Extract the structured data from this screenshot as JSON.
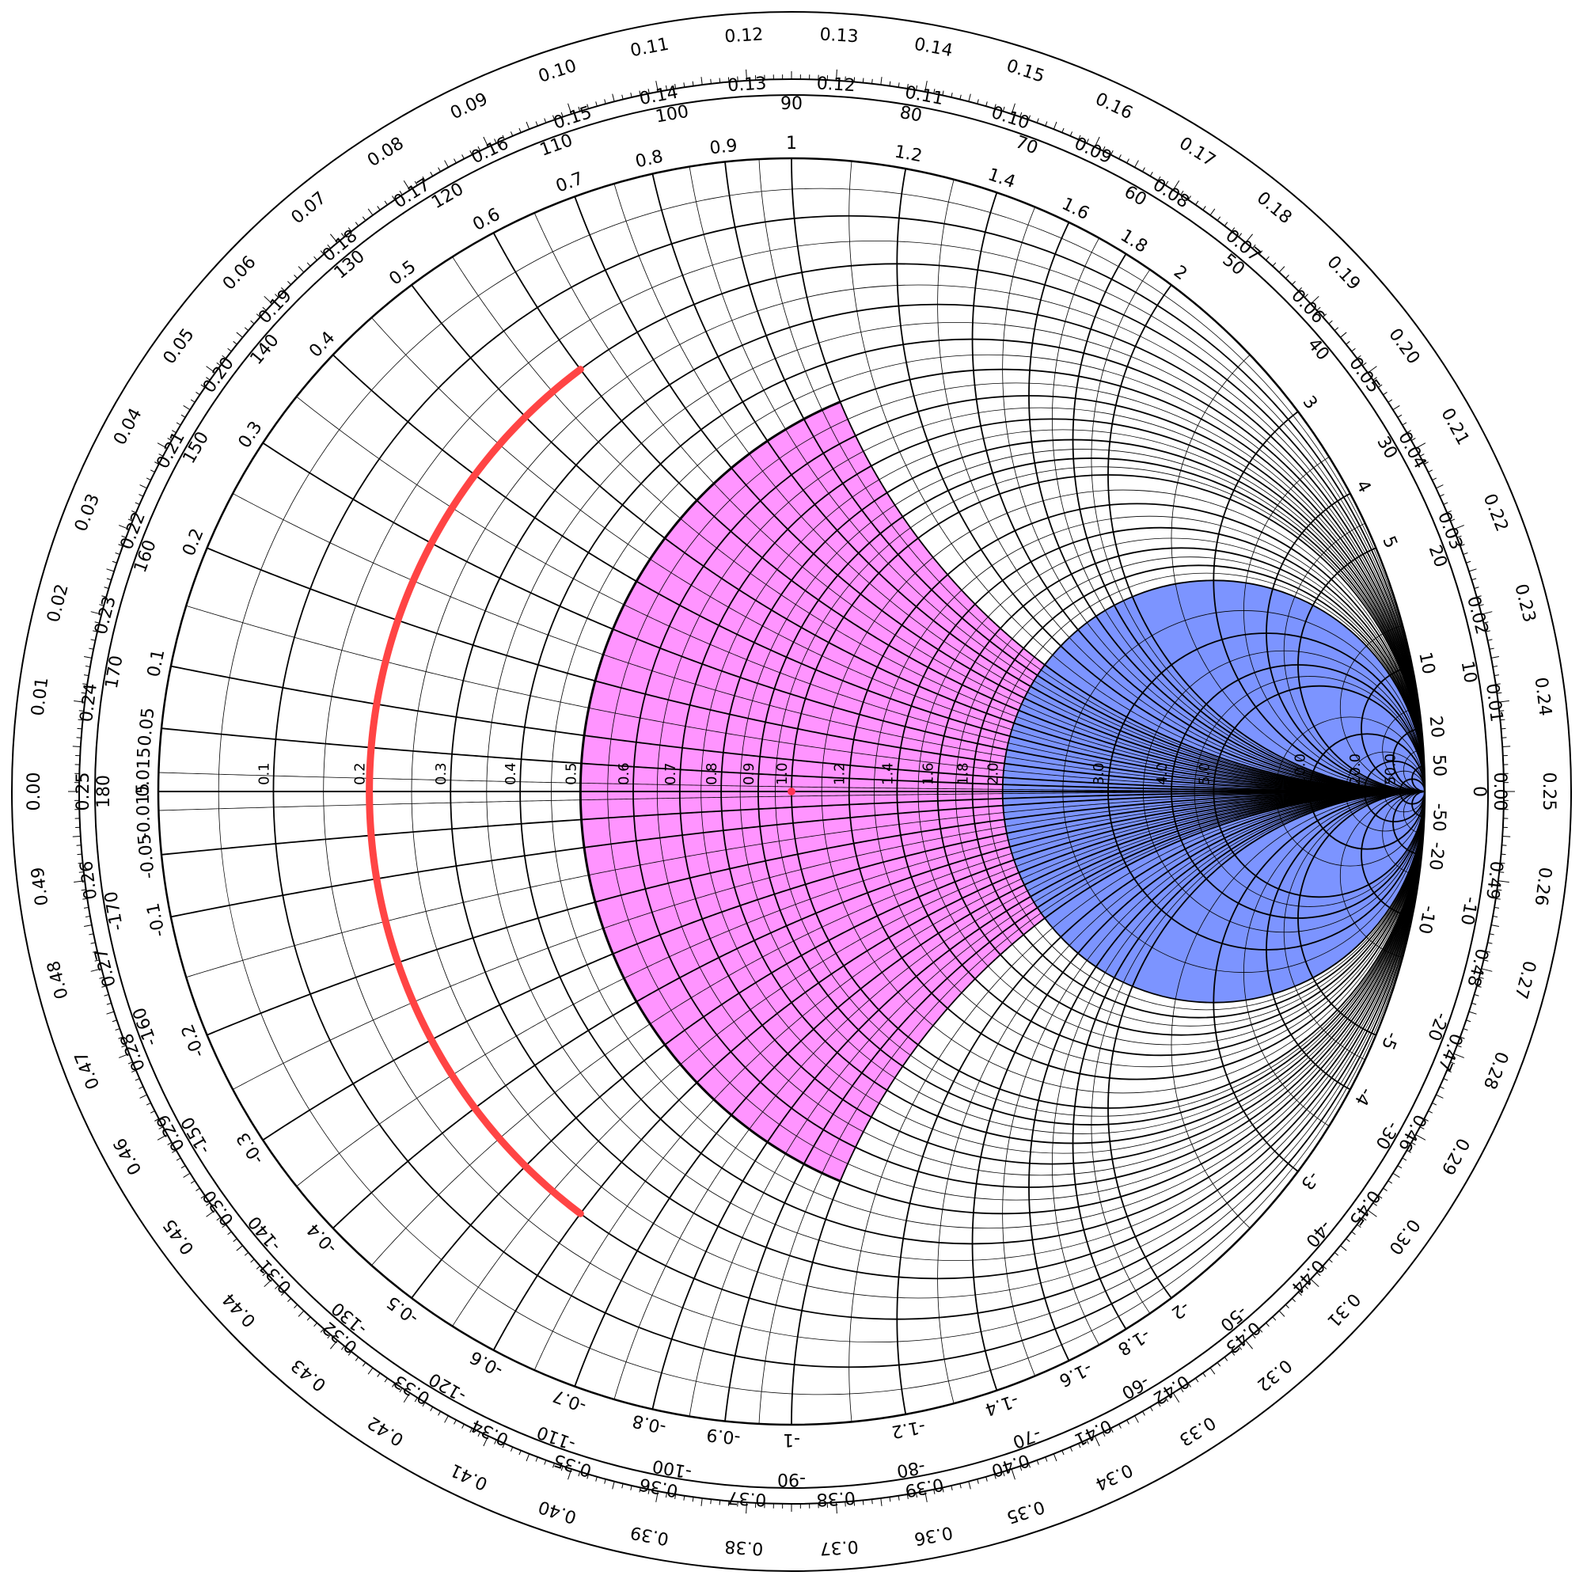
{
  "chart_data": {
    "type": "smith-chart",
    "colors": {
      "line": "#000000",
      "pink_region": "#ff66ff",
      "blue_region": "#4466ff",
      "arc": "#ff4444",
      "center_dot": "#ff3355"
    },
    "rings": {
      "toward_generator_labels": [
        "0.00",
        "0.01",
        "0.02",
        "0.03",
        "0.04",
        "0.05",
        "0.06",
        "0.07",
        "0.08",
        "0.09",
        "0.10",
        "0.11",
        "0.12",
        "0.13",
        "0.14",
        "0.15",
        "0.16",
        "0.17",
        "0.18",
        "0.19",
        "0.20",
        "0.21",
        "0.22",
        "0.23",
        "0.24",
        "0.25",
        "0.26",
        "0.27",
        "0.28",
        "0.29",
        "0.30",
        "0.31",
        "0.32",
        "0.33",
        "0.34",
        "0.35",
        "0.36",
        "0.37",
        "0.38",
        "0.39",
        "0.40",
        "0.41",
        "0.42",
        "0.43",
        "0.44",
        "0.45",
        "0.46",
        "0.47",
        "0.48",
        "0.49"
      ],
      "toward_load_labels": [
        "0.00",
        "0.01",
        "0.02",
        "0.03",
        "0.04",
        "0.05",
        "0.06",
        "0.07",
        "0.08",
        "0.09",
        "0.10",
        "0.11",
        "0.12",
        "0.13",
        "0.14",
        "0.15",
        "0.16",
        "0.17",
        "0.18",
        "0.19",
        "0.20",
        "0.21",
        "0.22",
        "0.23",
        "0.24",
        "0.25",
        "0.26",
        "0.27",
        "0.28",
        "0.29",
        "0.30",
        "0.31",
        "0.32",
        "0.33",
        "0.34",
        "0.35",
        "0.36",
        "0.37",
        "0.38",
        "0.39",
        "0.40",
        "0.41",
        "0.42",
        "0.43",
        "0.44",
        "0.45",
        "0.46",
        "0.47",
        "0.48",
        "0.49"
      ],
      "angle_values": [
        0,
        10,
        20,
        30,
        40,
        50,
        60,
        70,
        80,
        90,
        100,
        110,
        120,
        130,
        140,
        150,
        160,
        170,
        180,
        -170,
        -160,
        -150,
        -140,
        -130,
        -120,
        -110,
        -100,
        -90,
        -80,
        -70,
        -60,
        -50,
        -40,
        -30,
        -20,
        -10
      ]
    },
    "reactance_labels": [
      {
        "x": 0.015,
        "text": "0.015"
      },
      {
        "x": 0.05,
        "text": "0.05"
      },
      {
        "x": 0.1,
        "text": "0.1"
      },
      {
        "x": 0.2,
        "text": "0.2"
      },
      {
        "x": 0.3,
        "text": "0.3"
      },
      {
        "x": 0.4,
        "text": "0.4"
      },
      {
        "x": 0.5,
        "text": "0.5"
      },
      {
        "x": 0.6,
        "text": "0.6"
      },
      {
        "x": 0.7,
        "text": "0.7"
      },
      {
        "x": 0.8,
        "text": "0.8"
      },
      {
        "x": 0.9,
        "text": "0.9"
      },
      {
        "x": 1,
        "text": "1"
      },
      {
        "x": 1.2,
        "text": "1.2"
      },
      {
        "x": 1.4,
        "text": "1.4"
      },
      {
        "x": 1.6,
        "text": "1.6"
      },
      {
        "x": 1.8,
        "text": "1.8"
      },
      {
        "x": 2,
        "text": "2"
      },
      {
        "x": 3,
        "text": "3"
      },
      {
        "x": 4,
        "text": "4"
      },
      {
        "x": 5,
        "text": "5"
      },
      {
        "x": 10,
        "text": "10"
      },
      {
        "x": 20,
        "text": "20"
      },
      {
        "x": 50,
        "text": "50"
      },
      {
        "x": -0.015,
        "text": "-0.015"
      },
      {
        "x": -0.05,
        "text": "-0.05"
      },
      {
        "x": -0.1,
        "text": "-0.1"
      },
      {
        "x": -0.2,
        "text": "-0.2"
      },
      {
        "x": -0.3,
        "text": "-0.3"
      },
      {
        "x": -0.4,
        "text": "-0.4"
      },
      {
        "x": -0.5,
        "text": "-0.5"
      },
      {
        "x": -0.6,
        "text": "-0.6"
      },
      {
        "x": -0.7,
        "text": "-0.7"
      },
      {
        "x": -0.8,
        "text": "-0.8"
      },
      {
        "x": -0.9,
        "text": "-0.9"
      },
      {
        "x": -1,
        "text": "-1"
      },
      {
        "x": -1.2,
        "text": "-1.2"
      },
      {
        "x": -1.4,
        "text": "-1.4"
      },
      {
        "x": -1.6,
        "text": "-1.6"
      },
      {
        "x": -1.8,
        "text": "-1.8"
      },
      {
        "x": -2,
        "text": "-2"
      },
      {
        "x": -3,
        "text": "-3"
      },
      {
        "x": -4,
        "text": "-4"
      },
      {
        "x": -5,
        "text": "-5"
      },
      {
        "x": -10,
        "text": "-10"
      },
      {
        "x": -20,
        "text": "-20"
      },
      {
        "x": -50,
        "text": "-50"
      }
    ],
    "resistance_labels": [
      {
        "r": 0.1,
        "text": "0.1"
      },
      {
        "r": 0.2,
        "text": "0.2"
      },
      {
        "r": 0.3,
        "text": "0.3"
      },
      {
        "r": 0.4,
        "text": "0.4"
      },
      {
        "r": 0.5,
        "text": "0.5"
      },
      {
        "r": 0.6,
        "text": "0.6"
      },
      {
        "r": 0.7,
        "text": "0.7"
      },
      {
        "r": 0.8,
        "text": "0.8"
      },
      {
        "r": 0.9,
        "text": "0.9"
      },
      {
        "r": 1.0,
        "text": "1.0"
      },
      {
        "r": 1.2,
        "text": "1.2"
      },
      {
        "r": 1.4,
        "text": "1.4"
      },
      {
        "r": 1.6,
        "text": "1.6"
      },
      {
        "r": 1.8,
        "text": "1.8"
      },
      {
        "r": 2.0,
        "text": "2.0"
      },
      {
        "r": 3.0,
        "text": "3.0"
      },
      {
        "r": 4.0,
        "text": "4.0"
      },
      {
        "r": 5.0,
        "text": "5.0"
      },
      {
        "r": 10.0,
        "text": "10.0"
      },
      {
        "r": 20.0,
        "text": "20.0"
      },
      {
        "r": 50.0,
        "text": "50.0"
      }
    ],
    "grid": {
      "resistance_major": [
        0.1,
        0.2,
        0.3,
        0.4,
        0.5,
        0.6,
        0.7,
        0.8,
        0.9,
        1,
        1.2,
        1.4,
        1.6,
        1.8,
        2,
        3,
        4,
        5,
        10,
        20,
        50
      ],
      "reactance_major": [
        0.05,
        0.1,
        0.2,
        0.3,
        0.4,
        0.5,
        0.6,
        0.7,
        0.8,
        0.9,
        1,
        1.2,
        1.4,
        1.6,
        1.8,
        2,
        3,
        4,
        5,
        10,
        20,
        50
      ],
      "resistance_minor": [
        0.05,
        0.15,
        0.25,
        0.35,
        0.45,
        0.55,
        0.65,
        0.75,
        0.85,
        0.95,
        1.1,
        1.3,
        1.5,
        1.7,
        1.9,
        2.5,
        3.5,
        4.5,
        7.5,
        15,
        30
      ],
      "reactance_minor": [
        0.015,
        0.15,
        0.25,
        0.35,
        0.45,
        0.55,
        0.65,
        0.75,
        0.85,
        0.95,
        1.1,
        1.3,
        1.5,
        1.7,
        1.9,
        2.5,
        3.5,
        4.5,
        7.5,
        15,
        30
      ]
    },
    "regions": [
      {
        "name": "pink-region",
        "r_min": 0.5,
        "r_max": 2.0,
        "x_min": -1,
        "x_max": 1,
        "color": "#ff66ff"
      },
      {
        "name": "blue-region",
        "r_min": 2.0,
        "r_max": 1000,
        "x_min": -1000,
        "x_max": 1000,
        "color": "#4466ff"
      }
    ],
    "marker_arc": {
      "r": 0.2,
      "x_from": -0.6,
      "x_to": 0.6,
      "color": "#ff4444"
    },
    "center_point": {
      "r": 1,
      "x": 0
    }
  }
}
